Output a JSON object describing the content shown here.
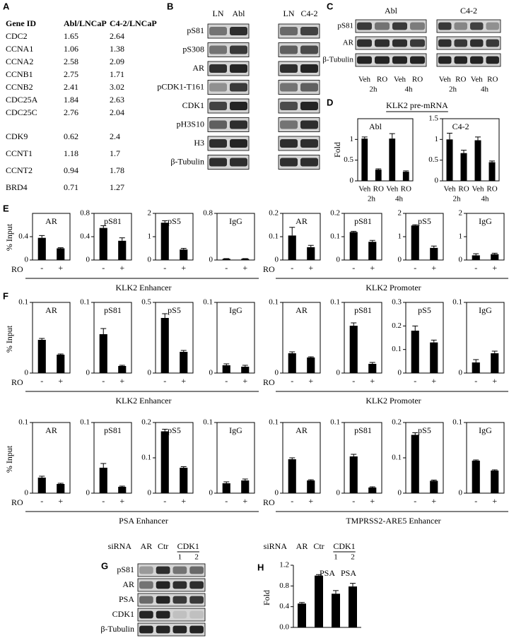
{
  "A": {
    "label": "A",
    "header": [
      "Gene ID",
      "Abl/LNCaP",
      "C4-2/LNCaP"
    ],
    "groups": [
      [
        [
          "CDC2",
          "1.65",
          "2.64"
        ],
        [
          "CCNA1",
          "1.06",
          "1.38"
        ],
        [
          "CCNA2",
          "2.58",
          "2.09"
        ],
        [
          "CCNB1",
          "2.75",
          "1.71"
        ],
        [
          "CCNB2",
          "2.41",
          "3.02"
        ],
        [
          "CDC25A",
          "1.84",
          "2.63"
        ],
        [
          "CDC25C",
          "2.76",
          "2.04"
        ]
      ],
      [
        [
          "CDK9",
          "0.62",
          "2.4"
        ],
        [
          "CCNT1",
          "1.18",
          "1.7"
        ],
        [
          "CCNT2",
          "0.94",
          "1.78"
        ],
        [
          "BRD4",
          "0.71",
          "1.27"
        ]
      ]
    ]
  },
  "B": {
    "label": "B",
    "lanes": [
      "LN",
      "Abl",
      "LN",
      "C4-2"
    ],
    "rows": [
      "pS81",
      "pS308",
      "AR",
      "pCDK1-T161",
      "CDK1",
      "pH3S10",
      "H3",
      "β-Tubulin"
    ]
  },
  "C": {
    "label": "C",
    "groups": [
      "Abl",
      "C4-2"
    ],
    "rows": [
      "pS81",
      "AR",
      "β-Tubulin"
    ],
    "lanes": [
      "Veh",
      "RO"
    ],
    "times": [
      "2h",
      "4h"
    ]
  },
  "D": {
    "label": "D",
    "title": "KLK2 pre-mRNA",
    "y_label": "Fold",
    "lanes": [
      "Veh",
      "RO"
    ],
    "times": [
      "2h",
      "4h"
    ],
    "charts": [
      {
        "title": "Abl",
        "ylim": [
          0,
          1.5
        ],
        "yticks": [
          0,
          0.5,
          1
        ],
        "values": [
          1.02,
          0.27,
          1.02,
          0.22
        ],
        "errors": [
          0.04,
          0.02,
          0.12,
          0.02
        ]
      },
      {
        "title": "C4-2",
        "ylim": [
          0,
          1.5
        ],
        "yticks": [
          0,
          0.5,
          1,
          1.5
        ],
        "values": [
          1.0,
          0.67,
          0.98,
          0.45
        ],
        "errors": [
          0.15,
          0.07,
          0.08,
          0.03
        ]
      }
    ]
  },
  "E": {
    "label": "E",
    "y_label": "% Input",
    "treatment": "RO",
    "conditions": [
      "-",
      "+"
    ],
    "groups": [
      {
        "name": "KLK2 Enhancer",
        "charts": [
          {
            "title": "AR",
            "ylim": [
              0,
              0.8
            ],
            "yticks": [
              0,
              0.4
            ],
            "values": [
              0.38,
              0.2
            ],
            "errors": [
              0.04,
              0.01
            ]
          },
          {
            "title": "pS81",
            "ylim": [
              0,
              0.8
            ],
            "yticks": [
              0,
              0.4,
              0.8
            ],
            "values": [
              0.55,
              0.33
            ],
            "errors": [
              0.04,
              0.05
            ]
          },
          {
            "title": "pS5",
            "ylim": [
              0,
              2
            ],
            "yticks": [
              0,
              1,
              2
            ],
            "values": [
              1.6,
              0.45
            ],
            "errors": [
              0.08,
              0.05
            ]
          },
          {
            "title": "IgG",
            "ylim": [
              0,
              0.8
            ],
            "yticks": [
              0,
              0.8
            ],
            "values": [
              0.02,
              0.02
            ],
            "errors": [
              0.005,
              0.005
            ]
          }
        ]
      },
      {
        "name": "KLK2 Promoter",
        "charts": [
          {
            "title": "AR",
            "ylim": [
              0,
              0.2
            ],
            "yticks": [
              0,
              0.1,
              0.2
            ],
            "values": [
              0.105,
              0.055
            ],
            "errors": [
              0.035,
              0.008
            ]
          },
          {
            "title": "pS81",
            "ylim": [
              0,
              0.2
            ],
            "yticks": [
              0,
              0.1,
              0.2
            ],
            "values": [
              0.12,
              0.078
            ],
            "errors": [
              0.003,
              0.006
            ]
          },
          {
            "title": "pS5",
            "ylim": [
              0,
              2
            ],
            "yticks": [
              0,
              1,
              2
            ],
            "values": [
              1.48,
              0.52
            ],
            "errors": [
              0.03,
              0.08
            ]
          },
          {
            "title": "IgG",
            "ylim": [
              0,
              2
            ],
            "yticks": [
              0,
              1,
              2
            ],
            "values": [
              0.2,
              0.25
            ],
            "errors": [
              0.07,
              0.04
            ]
          }
        ]
      }
    ]
  },
  "F": {
    "label": "F",
    "y_label": "% Input",
    "treatment": "RO",
    "conditions": [
      "-",
      "+"
    ],
    "groups": [
      {
        "name": "KLK2 Enhancer",
        "charts": [
          {
            "title": "AR",
            "ylim": [
              0,
              0.1
            ],
            "yticks": [
              0,
              0.1
            ],
            "values": [
              0.047,
              0.026
            ],
            "errors": [
              0.002,
              0.001
            ]
          },
          {
            "title": "pS81",
            "ylim": [
              0,
              0.1
            ],
            "yticks": [
              0,
              0.1
            ],
            "values": [
              0.055,
              0.01
            ],
            "errors": [
              0.008,
              0.001
            ]
          },
          {
            "title": "pS5",
            "ylim": [
              0,
              0.5
            ],
            "yticks": [
              0,
              0.5
            ],
            "values": [
              0.39,
              0.15
            ],
            "errors": [
              0.03,
              0.01
            ]
          },
          {
            "title": "IgG",
            "ylim": [
              0,
              0.1
            ],
            "yticks": [
              0,
              0.1
            ],
            "values": [
              0.011,
              0.009
            ],
            "errors": [
              0.002,
              0.002
            ]
          }
        ]
      },
      {
        "name": "KLK2 Promoter",
        "charts": [
          {
            "title": "AR",
            "ylim": [
              0,
              0.1
            ],
            "yticks": [
              0,
              0.1
            ],
            "values": [
              0.028,
              0.022
            ],
            "errors": [
              0.002,
              0.001
            ]
          },
          {
            "title": "pS81",
            "ylim": [
              0,
              0.1
            ],
            "yticks": [
              0,
              0.1
            ],
            "values": [
              0.067,
              0.013
            ],
            "errors": [
              0.004,
              0.002
            ]
          },
          {
            "title": "pS5",
            "ylim": [
              0,
              0.3
            ],
            "yticks": [
              0,
              0.1,
              0.2,
              0.3
            ],
            "values": [
              0.18,
              0.13
            ],
            "errors": [
              0.02,
              0.01
            ]
          },
          {
            "title": "IgG",
            "ylim": [
              0,
              0.1
            ],
            "yticks": [
              0,
              0.1
            ],
            "values": [
              0.015,
              0.028
            ],
            "errors": [
              0.004,
              0.003
            ]
          }
        ]
      },
      {
        "name": "PSA  Enhancer",
        "charts": [
          {
            "title": "AR",
            "ylim": [
              0,
              0.1
            ],
            "yticks": [
              0,
              0.1
            ],
            "values": [
              0.022,
              0.013
            ],
            "errors": [
              0.002,
              0.001
            ]
          },
          {
            "title": "pS81",
            "ylim": [
              0,
              0.1
            ],
            "yticks": [
              0,
              0.1
            ],
            "values": [
              0.036,
              0.009
            ],
            "errors": [
              0.006,
              0.001
            ]
          },
          {
            "title": "pS5",
            "ylim": [
              0,
              0.2
            ],
            "yticks": [
              0,
              0.1,
              0.2
            ],
            "values": [
              0.175,
              0.072
            ],
            "errors": [
              0.006,
              0.003
            ]
          },
          {
            "title": "IgG",
            "ylim": [
              0,
              0.1
            ],
            "yticks": [
              0,
              0.1
            ],
            "values": [
              0.014,
              0.018
            ],
            "errors": [
              0.002,
              0.002
            ]
          }
        ]
      },
      {
        "name": "TMPRSS2-ARE5 Enhancer",
        "charts": [
          {
            "title": "AR",
            "ylim": [
              0,
              0.1
            ],
            "yticks": [
              0,
              0.1
            ],
            "values": [
              0.048,
              0.018
            ],
            "errors": [
              0.002,
              0.001
            ]
          },
          {
            "title": "pS81",
            "ylim": [
              0,
              0.1
            ],
            "yticks": [
              0,
              0.1
            ],
            "values": [
              0.052,
              0.008
            ],
            "errors": [
              0.003,
              0.001
            ]
          },
          {
            "title": "pS5",
            "ylim": [
              0,
              0.2
            ],
            "yticks": [
              0,
              0.1,
              0.2
            ],
            "values": [
              0.165,
              0.035
            ],
            "errors": [
              0.006,
              0.002
            ]
          },
          {
            "title": "IgG",
            "ylim": [
              0,
              0.1
            ],
            "yticks": [
              0,
              0.1
            ],
            "values": [
              0.046,
              0.032
            ],
            "errors": [
              0.001,
              0.001
            ]
          }
        ]
      }
    ]
  },
  "G": {
    "label": "G",
    "siRNA": "siRNA",
    "lanes": [
      "AR",
      "Ctr",
      "CDK1"
    ],
    "sublanes": [
      "1",
      "2"
    ],
    "rows": [
      "pS81",
      "AR",
      "PSA",
      "CDK1",
      "β-Tubulin"
    ]
  },
  "H": {
    "label": "H",
    "siRNA": "siRNA",
    "lanes": [
      "AR",
      "Ctr",
      "CDK1"
    ],
    "sublanes": [
      "1",
      "2"
    ],
    "title": "PSA",
    "y_label": "Fold",
    "ylim": [
      0,
      1.2
    ],
    "yticks": [
      {
        "value": 0,
        "label": "0.0"
      },
      0.4,
      0.8,
      1.2
    ],
    "values": [
      0.46,
      1.0,
      0.65,
      0.79
    ],
    "errors": [
      0.02,
      0.02,
      0.06,
      0.06
    ]
  }
}
